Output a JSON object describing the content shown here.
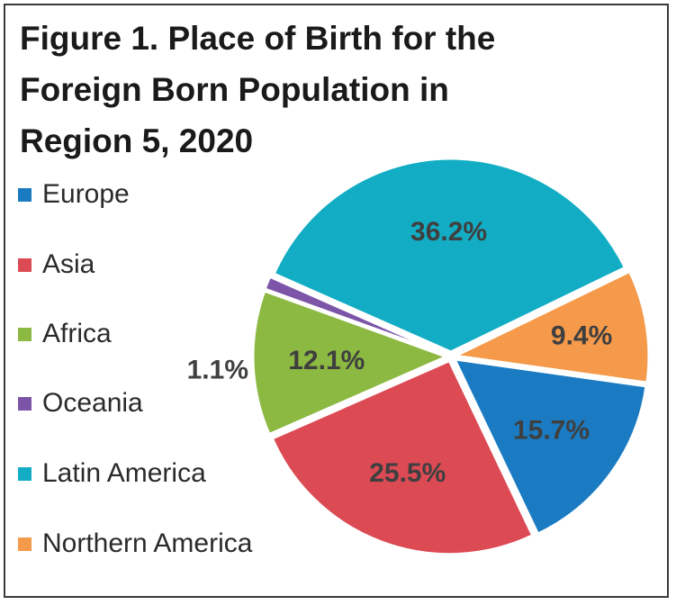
{
  "chart_data": {
    "type": "pie",
    "title_lines": [
      "Figure 1. Place of Birth for the",
      "Foreign Born Population in",
      "Region 5, 2020"
    ],
    "slices": [
      {
        "name": "Europe",
        "value": 15.7,
        "label": "15.7%",
        "color": "#1a7bc2"
      },
      {
        "name": "Asia",
        "value": 25.5,
        "label": "25.5%",
        "color": "#dc4a54"
      },
      {
        "name": "Africa",
        "value": 12.1,
        "label": "12.1%",
        "color": "#8cb942"
      },
      {
        "name": "Oceania",
        "value": 1.1,
        "label": "1.1%",
        "color": "#7d55a8"
      },
      {
        "name": "Latin America",
        "value": 36.2,
        "label": "36.2%",
        "color": "#12adc4"
      },
      {
        "name": "Northern America",
        "value": 9.4,
        "label": "9.4%",
        "color": "#f59a4a"
      }
    ],
    "legend_position": "left"
  }
}
